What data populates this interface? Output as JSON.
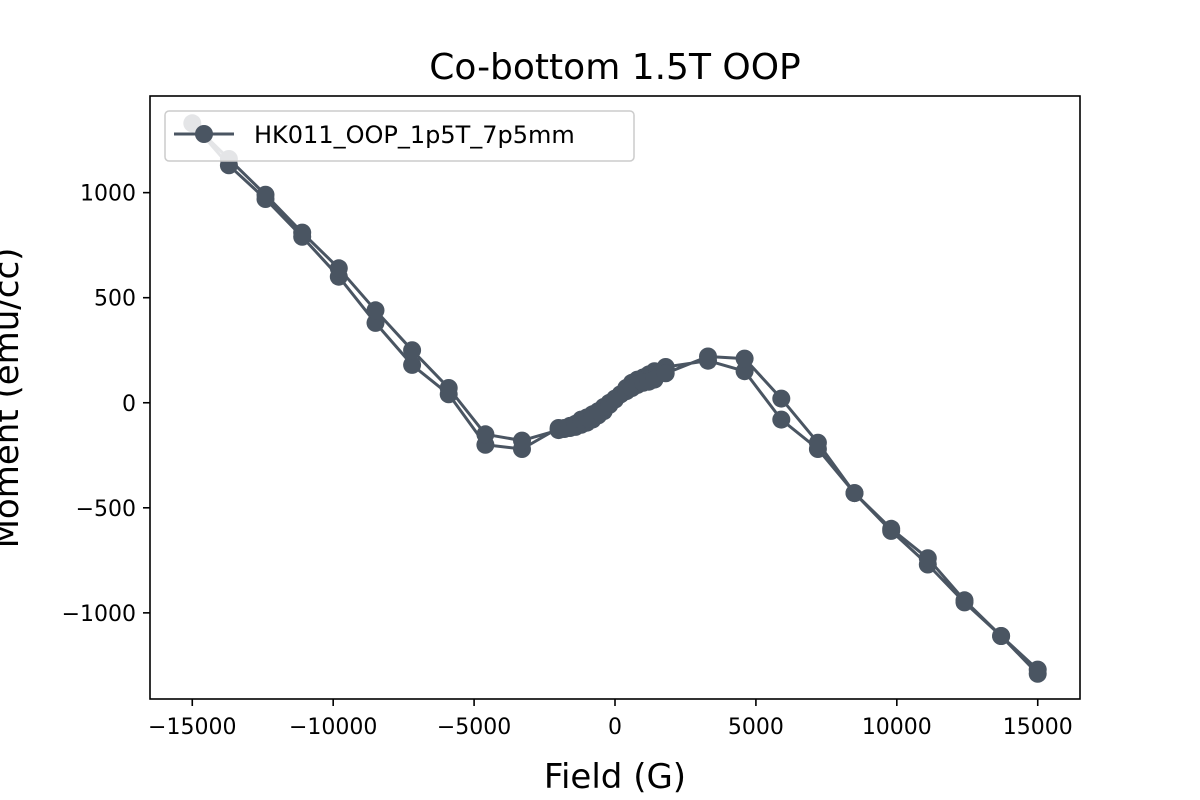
{
  "chart_data": {
    "type": "line",
    "title": "Co-bottom 1.5T OOP",
    "xlabel": "Field (G)",
    "ylabel": "Moment (emu/cc)",
    "xlim": [
      -16500,
      16500
    ],
    "ylim": [
      -1410,
      1460
    ],
    "xticks": [
      -15000,
      -10000,
      -5000,
      0,
      5000,
      10000,
      15000
    ],
    "xtick_labels": [
      "−15000",
      "−10000",
      "−5000",
      "0",
      "5000",
      "10000",
      "15000"
    ],
    "yticks": [
      -1000,
      -500,
      0,
      500,
      1000
    ],
    "ytick_labels": [
      "−1000",
      "−500",
      "0",
      "500",
      "1000"
    ],
    "grid": false,
    "legend_position": "top-left",
    "color": "#4a5562",
    "series": [
      {
        "name": "HK011_OOP_1p5T_7p5mm",
        "x": [
          15000,
          13700,
          12400,
          11100,
          9800,
          8500,
          7200,
          5900,
          4600,
          3300,
          1800,
          1400,
          1200,
          1000,
          800,
          600,
          400,
          200,
          0,
          -200,
          -400,
          -600,
          -800,
          -1000,
          -1200,
          -1400,
          -1600,
          -1800,
          -2000,
          -3300,
          -4600,
          -5900,
          -7200,
          -8500,
          -9800,
          -11100,
          -12400,
          -13700,
          -15000,
          -13700,
          -12400,
          -11100,
          -9800,
          -8500,
          -7200,
          -5900,
          -4600,
          -3300,
          -2000,
          -1800,
          -1600,
          -1400,
          -1200,
          -1000,
          -800,
          -600,
          -400,
          -200,
          0,
          200,
          400,
          600,
          800,
          1000,
          1200,
          1400,
          1800,
          3300,
          4600,
          5900,
          7200,
          8500,
          9800,
          11100,
          12400,
          13700,
          15000
        ],
        "y": [
          -1270,
          -1110,
          -950,
          -770,
          -610,
          -430,
          -220,
          -80,
          150,
          200,
          170,
          150,
          135,
          120,
          110,
          95,
          70,
          40,
          15,
          -10,
          -40,
          -60,
          -80,
          -95,
          -105,
          -115,
          -120,
          -125,
          -120,
          -220,
          -200,
          40,
          180,
          380,
          600,
          790,
          970,
          1130,
          1330,
          1160,
          990,
          810,
          640,
          440,
          250,
          70,
          -150,
          -180,
          -130,
          -120,
          -110,
          -100,
          -80,
          -70,
          -55,
          -40,
          -20,
          0,
          20,
          40,
          55,
          70,
          85,
          95,
          100,
          110,
          140,
          220,
          210,
          20,
          -190,
          -430,
          -600,
          -740,
          -940,
          -1110,
          -1290
        ]
      }
    ]
  }
}
